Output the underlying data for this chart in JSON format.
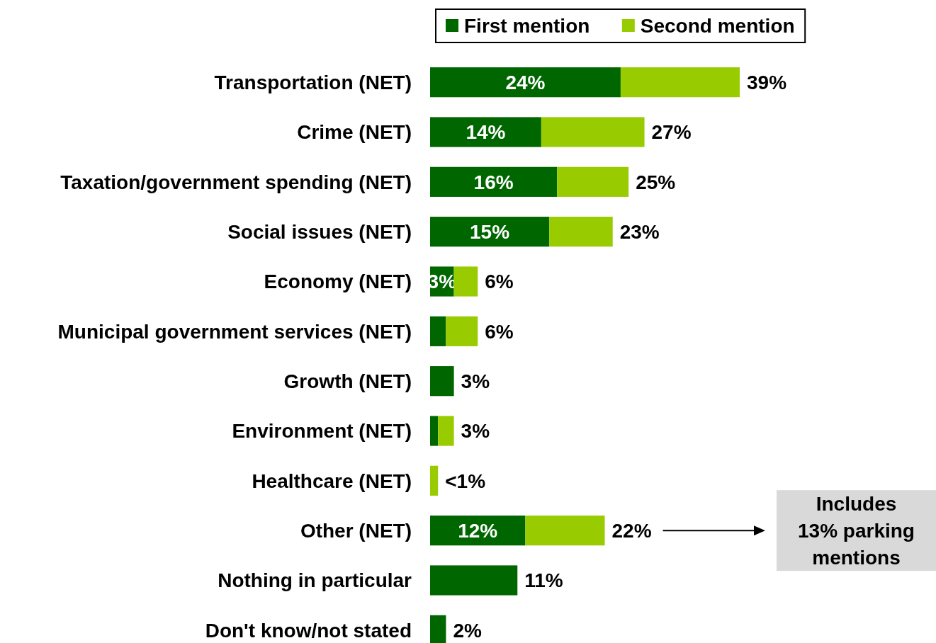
{
  "chart_data": {
    "type": "bar",
    "orientation": "horizontal",
    "stacked": true,
    "legend": "top",
    "categories": [
      "Transportation (NET)",
      "Crime (NET)",
      "Taxation/government spending (NET)",
      "Social issues (NET)",
      "Economy (NET)",
      "Municipal government services (NET)",
      "Growth (NET)",
      "Environment (NET)",
      "Healthcare (NET)",
      "Other (NET)",
      "Nothing in particular",
      "Don't know/not stated"
    ],
    "series": [
      {
        "name": "First mention",
        "color": "#006600",
        "values": [
          24,
          14,
          16,
          15,
          3,
          2,
          3,
          1,
          0,
          12,
          11,
          2
        ],
        "value_labels": [
          "24%",
          "14%",
          "16%",
          "15%",
          "3%",
          null,
          null,
          null,
          null,
          "12%",
          null,
          null
        ]
      },
      {
        "name": "Second mention",
        "color": "#99cc00",
        "values": [
          15,
          13,
          9,
          8,
          3,
          4,
          0,
          2,
          1,
          10,
          0,
          0
        ]
      }
    ],
    "totals": [
      "39%",
      "27%",
      "25%",
      "23%",
      "6%",
      "6%",
      "3%",
      "3%",
      "<1%",
      "22%",
      "11%",
      "2%"
    ],
    "annotations": [
      "Includes 13% parking mentions"
    ]
  }
}
